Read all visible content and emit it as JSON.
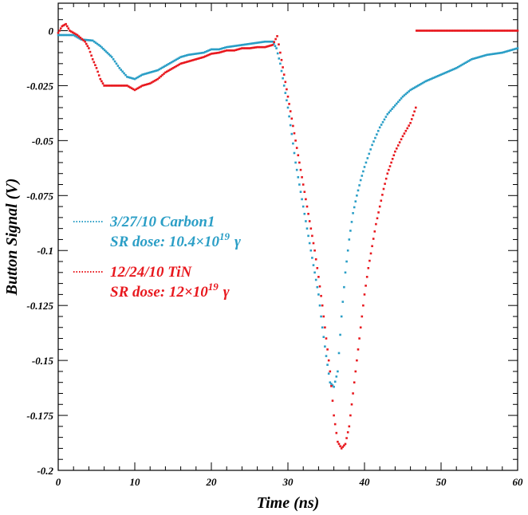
{
  "chart_data": {
    "type": "scatter",
    "xlabel": "Time (ns)",
    "ylabel": "Button Signal (V)",
    "xlim": [
      0,
      60
    ],
    "ylim": [
      -0.2,
      0.0125
    ],
    "xticks": [
      "0",
      "10",
      "20",
      "30",
      "40",
      "50",
      "60"
    ],
    "yticks": [
      "0",
      "-0.025",
      "-0.05",
      "-0.075",
      "-0.1",
      "-0.125",
      "-0.15",
      "-0.175",
      "-0.2"
    ],
    "grid": false,
    "legend_position": "left-middle",
    "series": [
      {
        "name": "3/27/10 Carbon1",
        "name_line2": "SR dose: 10.4×10",
        "exp": "19",
        "unit": "γ",
        "color": "#2a9ec6",
        "points": [
          [
            0,
            -0.002
          ],
          [
            2,
            -0.002
          ],
          [
            3,
            -0.004
          ],
          [
            4.5,
            -0.0045
          ],
          [
            5.5,
            -0.007
          ],
          [
            7,
            -0.012
          ],
          [
            8,
            -0.017
          ],
          [
            9,
            -0.021
          ],
          [
            10,
            -0.022
          ],
          [
            11,
            -0.02
          ],
          [
            12,
            -0.019
          ],
          [
            13,
            -0.018
          ],
          [
            14,
            -0.016
          ],
          [
            15,
            -0.014
          ],
          [
            16,
            -0.012
          ],
          [
            17,
            -0.011
          ],
          [
            18,
            -0.0105
          ],
          [
            19,
            -0.01
          ],
          [
            20,
            -0.0085
          ],
          [
            21,
            -0.0085
          ],
          [
            22,
            -0.0075
          ],
          [
            23,
            -0.007
          ],
          [
            24,
            -0.0065
          ],
          [
            25,
            -0.006
          ],
          [
            26,
            -0.0055
          ],
          [
            27,
            -0.005
          ],
          [
            28,
            -0.005
          ],
          [
            28.5,
            -0.008
          ],
          [
            29,
            -0.015
          ],
          [
            29.5,
            -0.025
          ],
          [
            30,
            -0.035
          ],
          [
            30.5,
            -0.047
          ],
          [
            31,
            -0.06
          ],
          [
            31.5,
            -0.07
          ],
          [
            32,
            -0.08
          ],
          [
            32.5,
            -0.09
          ],
          [
            33,
            -0.1
          ],
          [
            33.5,
            -0.11
          ],
          [
            34,
            -0.12
          ],
          [
            34.5,
            -0.135
          ],
          [
            35,
            -0.148
          ],
          [
            35.5,
            -0.16
          ],
          [
            36,
            -0.162
          ],
          [
            36.5,
            -0.155
          ],
          [
            37,
            -0.13
          ],
          [
            37.5,
            -0.11
          ],
          [
            38,
            -0.095
          ],
          [
            38.5,
            -0.083
          ],
          [
            39,
            -0.075
          ],
          [
            39.5,
            -0.068
          ],
          [
            40,
            -0.062
          ],
          [
            41,
            -0.052
          ],
          [
            42,
            -0.044
          ],
          [
            43,
            -0.038
          ],
          [
            44,
            -0.034
          ],
          [
            45,
            -0.03
          ],
          [
            46,
            -0.027
          ],
          [
            47,
            -0.025
          ],
          [
            48,
            -0.023
          ],
          [
            50,
            -0.02
          ],
          [
            52,
            -0.017
          ],
          [
            54,
            -0.013
          ],
          [
            56,
            -0.011
          ],
          [
            58,
            -0.01
          ],
          [
            59,
            -0.009
          ],
          [
            60,
            -0.008
          ]
        ]
      },
      {
        "name": "12/24/10 TiN",
        "name_line2": "SR dose: 12×10",
        "exp": "19",
        "unit": "γ",
        "color": "#e8181e",
        "points": [
          [
            0,
            -0.001
          ],
          [
            0.5,
            0.002
          ],
          [
            1,
            0.003
          ],
          [
            1.5,
            0
          ],
          [
            2.5,
            -0.002
          ],
          [
            3.5,
            -0.005
          ],
          [
            4,
            -0.008
          ],
          [
            4.5,
            -0.013
          ],
          [
            5,
            -0.017
          ],
          [
            5.5,
            -0.022
          ],
          [
            6,
            -0.025
          ],
          [
            7,
            -0.025
          ],
          [
            8,
            -0.025
          ],
          [
            9,
            -0.025
          ],
          [
            10,
            -0.027
          ],
          [
            11,
            -0.025
          ],
          [
            12,
            -0.024
          ],
          [
            13,
            -0.022
          ],
          [
            14,
            -0.019
          ],
          [
            15,
            -0.017
          ],
          [
            16,
            -0.015
          ],
          [
            17,
            -0.014
          ],
          [
            18,
            -0.013
          ],
          [
            19,
            -0.012
          ],
          [
            20,
            -0.0105
          ],
          [
            21,
            -0.01
          ],
          [
            22,
            -0.009
          ],
          [
            23,
            -0.009
          ],
          [
            24,
            -0.008
          ],
          [
            25,
            -0.008
          ],
          [
            26,
            -0.0075
          ],
          [
            27,
            -0.0075
          ],
          [
            28,
            -0.0065
          ],
          [
            28.6,
            -0.0025
          ],
          [
            29,
            -0.01
          ],
          [
            29.5,
            -0.02
          ],
          [
            30,
            -0.03
          ],
          [
            30.5,
            -0.04
          ],
          [
            31,
            -0.05
          ],
          [
            31.5,
            -0.06
          ],
          [
            32,
            -0.07
          ],
          [
            32.5,
            -0.08
          ],
          [
            33,
            -0.09
          ],
          [
            33.5,
            -0.1
          ],
          [
            34,
            -0.112
          ],
          [
            34.5,
            -0.125
          ],
          [
            35,
            -0.14
          ],
          [
            35.5,
            -0.155
          ],
          [
            36,
            -0.175
          ],
          [
            36.5,
            -0.187
          ],
          [
            37,
            -0.19
          ],
          [
            37.5,
            -0.188
          ],
          [
            38,
            -0.18
          ],
          [
            38.5,
            -0.165
          ],
          [
            39,
            -0.15
          ],
          [
            39.5,
            -0.135
          ],
          [
            40,
            -0.12
          ],
          [
            40.5,
            -0.108
          ],
          [
            41,
            -0.098
          ],
          [
            41.5,
            -0.088
          ],
          [
            42,
            -0.08
          ],
          [
            42.5,
            -0.072
          ],
          [
            43,
            -0.065
          ],
          [
            43.5,
            -0.06
          ],
          [
            44,
            -0.055
          ],
          [
            45,
            -0.048
          ],
          [
            46,
            -0.042
          ],
          [
            46.7,
            -0.035
          ],
          [
            46.8,
            0
          ],
          [
            48,
            0
          ],
          [
            50,
            0
          ],
          [
            52,
            0
          ],
          [
            54,
            0
          ],
          [
            56,
            0
          ],
          [
            58,
            0
          ],
          [
            60,
            0
          ]
        ]
      }
    ]
  }
}
